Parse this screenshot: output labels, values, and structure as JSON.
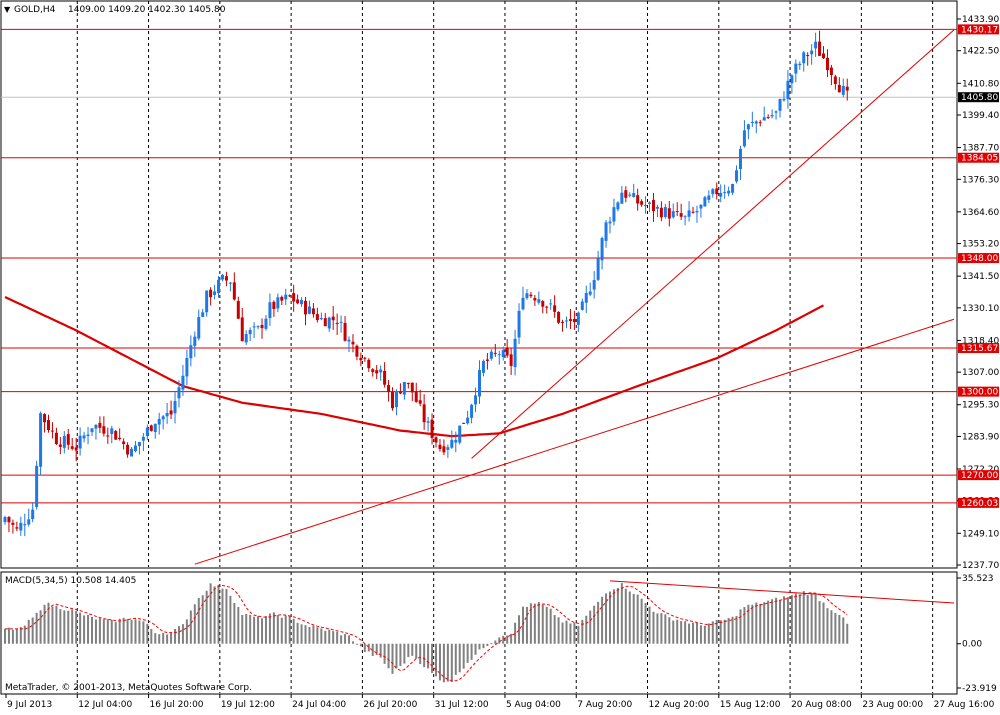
{
  "chart_data": {
    "type": "candlestick",
    "symbol_header": "GOLD,H4",
    "ohlc_header": "1409.00 1409.20 1402.30 1405.80",
    "current_price": 1405.8,
    "y_ticks": [
      "1433.90",
      "1422.50",
      "1410.80",
      "1399.40",
      "1387.70",
      "1376.30",
      "1364.60",
      "1353.20",
      "1341.50",
      "1330.10",
      "1318.40",
      "1307.00",
      "1295.30",
      "1283.90",
      "1272.20",
      "1260.80",
      "1249.10",
      "1237.70"
    ],
    "ylim": [
      1237.7,
      1433.9
    ],
    "x_ticks": [
      "9 Jul 2013",
      "12 Jul 04:00",
      "16 Jul 20:00",
      "19 Jul 12:00",
      "24 Jul 04:00",
      "26 Jul 20:00",
      "31 Jul 12:00",
      "5 Aug 04:00",
      "7 Aug 20:00",
      "12 Aug 20:00",
      "15 Aug 12:00",
      "20 Aug 08:00",
      "23 Aug 00:00",
      "27 Aug 16:00"
    ],
    "horizontal_levels": [
      {
        "value": 1430.17,
        "label": "1430.17"
      },
      {
        "value": 1384.05,
        "label": "1384.05"
      },
      {
        "value": 1348.0,
        "label": "1348.00"
      },
      {
        "value": 1315.67,
        "label": "1315.67"
      },
      {
        "value": 1300.0,
        "label": "1300.00"
      },
      {
        "value": 1270.0,
        "label": "1270.00"
      },
      {
        "value": 1260.03,
        "label": "1260.03"
      }
    ],
    "price_waypoints": [
      [
        0,
        1255
      ],
      [
        3,
        1250
      ],
      [
        7,
        1258
      ],
      [
        9,
        1292
      ],
      [
        13,
        1283
      ],
      [
        18,
        1280
      ],
      [
        22,
        1288
      ],
      [
        27,
        1286
      ],
      [
        32,
        1278
      ],
      [
        36,
        1286
      ],
      [
        38,
        1290
      ],
      [
        42,
        1292
      ],
      [
        45,
        1306
      ],
      [
        48,
        1322
      ],
      [
        51,
        1334
      ],
      [
        55,
        1340
      ],
      [
        57,
        1340
      ],
      [
        60,
        1320
      ],
      [
        64,
        1322
      ],
      [
        67,
        1330
      ],
      [
        72,
        1334
      ],
      [
        76,
        1330
      ],
      [
        80,
        1326
      ],
      [
        84,
        1326
      ],
      [
        87,
        1318
      ],
      [
        91,
        1312
      ],
      [
        95,
        1306
      ],
      [
        98,
        1296
      ],
      [
        101,
        1304
      ],
      [
        103,
        1300
      ],
      [
        106,
        1290
      ],
      [
        110,
        1280
      ],
      [
        113,
        1282
      ],
      [
        117,
        1292
      ],
      [
        121,
        1310
      ],
      [
        125,
        1314
      ],
      [
        128,
        1310
      ],
      [
        131,
        1336
      ],
      [
        135,
        1334
      ],
      [
        138,
        1330
      ],
      [
        141,
        1324
      ],
      [
        145,
        1326
      ],
      [
        149,
        1342
      ],
      [
        152,
        1360
      ],
      [
        156,
        1372
      ],
      [
        160,
        1368
      ],
      [
        164,
        1366
      ],
      [
        168,
        1364
      ],
      [
        172,
        1362
      ],
      [
        176,
        1366
      ],
      [
        180,
        1372
      ],
      [
        184,
        1374
      ],
      [
        187,
        1394
      ],
      [
        191,
        1398
      ],
      [
        195,
        1400
      ],
      [
        199,
        1414
      ],
      [
        202,
        1420
      ],
      [
        205,
        1424
      ],
      [
        208,
        1418
      ],
      [
        211,
        1410
      ],
      [
        213,
        1405.8
      ]
    ],
    "ma_points": [
      [
        0,
        1334
      ],
      [
        18,
        1322
      ],
      [
        45,
        1302
      ],
      [
        60,
        1296
      ],
      [
        80,
        1292
      ],
      [
        100,
        1286
      ],
      [
        113,
        1284
      ],
      [
        125,
        1285
      ],
      [
        141,
        1292
      ],
      [
        160,
        1302
      ],
      [
        180,
        1312
      ],
      [
        195,
        1322
      ],
      [
        207,
        1331
      ]
    ],
    "trendlines": [
      {
        "x1": 48,
        "y1": 1238,
        "x2": 240,
        "y2": 1326
      },
      {
        "x1": 118,
        "y1": 1276,
        "x2": 240,
        "y2": 1430
      }
    ],
    "macd": {
      "label": "MACD(5,34,5) 10.508 14.405",
      "y_ticks": [
        "35.523",
        "0.00",
        "-23.919"
      ],
      "ylim": [
        -23.919,
        35.523
      ],
      "hist_waypoints": [
        [
          0,
          8
        ],
        [
          4,
          8
        ],
        [
          8,
          16
        ],
        [
          10,
          22
        ],
        [
          13,
          20
        ],
        [
          17,
          18
        ],
        [
          22,
          14
        ],
        [
          27,
          12
        ],
        [
          31,
          14
        ],
        [
          35,
          12
        ],
        [
          38,
          6
        ],
        [
          42,
          6
        ],
        [
          45,
          10
        ],
        [
          48,
          22
        ],
        [
          52,
          32
        ],
        [
          56,
          30
        ],
        [
          60,
          16
        ],
        [
          64,
          14
        ],
        [
          68,
          16
        ],
        [
          72,
          14
        ],
        [
          76,
          10
        ],
        [
          80,
          8
        ],
        [
          84,
          6
        ],
        [
          87,
          4
        ],
        [
          91,
          -4
        ],
        [
          95,
          -8
        ],
        [
          98,
          -16
        ],
        [
          101,
          -10
        ],
        [
          103,
          -6
        ],
        [
          106,
          -12
        ],
        [
          110,
          -20
        ],
        [
          113,
          -20
        ],
        [
          117,
          -10
        ],
        [
          121,
          -2
        ],
        [
          125,
          4
        ],
        [
          128,
          6
        ],
        [
          131,
          20
        ],
        [
          135,
          22
        ],
        [
          138,
          18
        ],
        [
          141,
          12
        ],
        [
          145,
          10
        ],
        [
          149,
          20
        ],
        [
          152,
          28
        ],
        [
          156,
          32
        ],
        [
          160,
          26
        ],
        [
          164,
          18
        ],
        [
          168,
          14
        ],
        [
          172,
          12
        ],
        [
          176,
          10
        ],
        [
          180,
          12
        ],
        [
          184,
          14
        ],
        [
          187,
          20
        ],
        [
          191,
          22
        ],
        [
          195,
          24
        ],
        [
          199,
          26
        ],
        [
          202,
          28
        ],
        [
          205,
          26
        ],
        [
          208,
          20
        ],
        [
          211,
          16
        ],
        [
          213,
          10.508
        ]
      ],
      "divergence_line": {
        "x1": 153,
        "y1": 34,
        "x2": 240,
        "y2": 22
      }
    },
    "footer": "MetaTrader, © 2001-2013, MetaQuotes Software Corp.",
    "colors": {
      "bull": "#1e78e6",
      "bear": "#c80000",
      "level": "#e00000",
      "ma": "#dc0000",
      "trend": "#e00000",
      "hist": "#808080",
      "signal": "#ff0000",
      "label_bg": "#e00000",
      "current_bg": "#000000"
    }
  }
}
